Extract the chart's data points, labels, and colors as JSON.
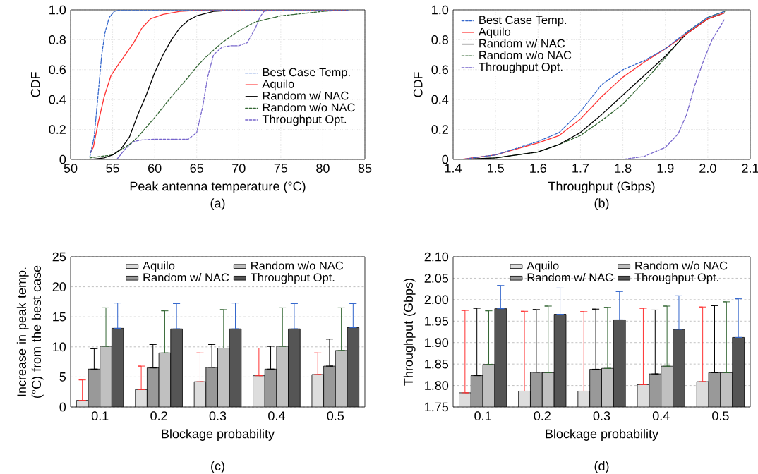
{
  "chart_data": [
    {
      "type": "line",
      "xlabel": "Peak antenna temperature (°C)",
      "ylabel": "CDF",
      "annotations": [
        "(a)"
      ],
      "xlim": [
        50,
        85
      ],
      "ylim": [
        0,
        1
      ],
      "xticks": [
        50,
        55,
        60,
        65,
        70,
        75,
        80,
        85
      ],
      "yticks": [
        0,
        0.2,
        0.4,
        0.6,
        0.8,
        {
          "value": 1.0,
          "label": "1.0"
        }
      ],
      "grid": true,
      "legend": "right",
      "series": [
        {
          "name": "Best Case Temp.",
          "color": "#3366cc",
          "line_style": "dashed",
          "x": [
            52.3,
            52.8,
            53.3,
            53.7,
            54.1,
            54.6,
            55.2,
            56,
            83
          ],
          "values": [
            0.02,
            0.15,
            0.45,
            0.7,
            0.85,
            0.95,
            0.99,
            1.0,
            1.0
          ]
        },
        {
          "name": "Aquilo",
          "color": "#ff3333",
          "line_style": "solid",
          "x": [
            52.3,
            52.7,
            53.3,
            54,
            54.8,
            55.5,
            56.5,
            57.5,
            58.5,
            59.5,
            61,
            63,
            66,
            83
          ],
          "values": [
            0.04,
            0.08,
            0.25,
            0.42,
            0.56,
            0.62,
            0.7,
            0.78,
            0.88,
            0.94,
            0.97,
            0.99,
            1.0,
            1.0
          ]
        },
        {
          "name": "Random w/ NAC",
          "color": "#000000",
          "line_style": "solid",
          "x": [
            52.5,
            54,
            55,
            56,
            57,
            58,
            59,
            60,
            61,
            62,
            63,
            64,
            65,
            67,
            70
          ],
          "values": [
            0,
            0.01,
            0.03,
            0.07,
            0.15,
            0.3,
            0.43,
            0.58,
            0.7,
            0.8,
            0.88,
            0.93,
            0.96,
            0.99,
            1.0
          ]
        },
        {
          "name": "Random w/o NAC",
          "color": "#336633",
          "line_style": "dashed",
          "x": [
            52.3,
            55,
            57,
            58,
            60,
            62,
            64,
            65,
            66,
            68,
            70,
            72,
            75,
            80,
            83
          ],
          "values": [
            0.01,
            0.03,
            0.1,
            0.15,
            0.28,
            0.42,
            0.55,
            0.62,
            0.68,
            0.78,
            0.86,
            0.92,
            0.96,
            0.99,
            1.0
          ]
        },
        {
          "name": "Throughput Opt.",
          "color": "#7766cc",
          "line_style": "dashed",
          "x": [
            55.5,
            56.5,
            57.5,
            58.5,
            60,
            64,
            65,
            65.7,
            66.3,
            67,
            68,
            69,
            70,
            71,
            72,
            72.5,
            73,
            74
          ],
          "values": [
            0,
            0.07,
            0.12,
            0.13,
            0.135,
            0.135,
            0.18,
            0.35,
            0.55,
            0.7,
            0.75,
            0.76,
            0.76,
            0.78,
            0.88,
            0.95,
            0.99,
            1.0
          ]
        }
      ]
    },
    {
      "type": "line",
      "xlabel": "Throughput (Gbps)",
      "ylabel": "CDF",
      "annotations": [
        "(b)"
      ],
      "xlim": [
        1.4,
        2.1
      ],
      "ylim": [
        0,
        1
      ],
      "xticks": [
        1.4,
        1.5,
        1.6,
        1.7,
        1.8,
        1.9,
        {
          "value": 2.0,
          "label": "2.0"
        },
        2.1
      ],
      "yticks": [
        0,
        0.2,
        0.4,
        0.6,
        0.8,
        {
          "value": 1.0,
          "label": "1.0"
        }
      ],
      "grid": true,
      "legend": "top left",
      "series": [
        {
          "name": "Best Case Temp.",
          "color": "#3366cc",
          "line_style": "dashed",
          "x": [
            1.42,
            1.5,
            1.6,
            1.65,
            1.7,
            1.75,
            1.8,
            1.85,
            1.9,
            1.95,
            2.0,
            2.04
          ],
          "values": [
            0,
            0.03,
            0.12,
            0.18,
            0.32,
            0.5,
            0.6,
            0.66,
            0.74,
            0.85,
            0.95,
            0.99
          ]
        },
        {
          "name": "Aquilo",
          "color": "#ff3333",
          "line_style": "solid",
          "x": [
            1.42,
            1.5,
            1.6,
            1.65,
            1.7,
            1.75,
            1.8,
            1.85,
            1.9,
            1.95,
            2.0,
            2.04
          ],
          "values": [
            0,
            0.03,
            0.11,
            0.16,
            0.27,
            0.42,
            0.55,
            0.65,
            0.74,
            0.84,
            0.94,
            0.98
          ]
        },
        {
          "name": "Random w/ NAC",
          "color": "#000000",
          "line_style": "solid",
          "x": [
            1.42,
            1.5,
            1.6,
            1.65,
            1.7,
            1.75,
            1.8,
            1.85,
            1.9,
            1.95,
            2.0,
            2.04
          ],
          "values": [
            0,
            0.01,
            0.05,
            0.1,
            0.18,
            0.3,
            0.43,
            0.56,
            0.69,
            0.84,
            0.94,
            0.98
          ]
        },
        {
          "name": "Random w/o NAC",
          "color": "#336633",
          "line_style": "dashed",
          "x": [
            1.42,
            1.5,
            1.6,
            1.65,
            1.7,
            1.75,
            1.8,
            1.85,
            1.9,
            1.95,
            2.0,
            2.04
          ],
          "values": [
            0,
            0.01,
            0.05,
            0.1,
            0.16,
            0.26,
            0.37,
            0.52,
            0.68,
            0.85,
            0.95,
            0.99
          ]
        },
        {
          "name": "Throughput Opt.",
          "color": "#7766cc",
          "line_style": "dashed",
          "x": [
            1.42,
            1.8,
            1.85,
            1.9,
            1.93,
            1.95,
            1.97,
            1.99,
            2.01,
            2.04
          ],
          "values": [
            0,
            0,
            0.02,
            0.08,
            0.17,
            0.3,
            0.5,
            0.66,
            0.8,
            0.94
          ]
        }
      ]
    },
    {
      "type": "bar",
      "xlabel": "Blockage probability",
      "ylabel": "Increase in peak temp. (°C) from the best case",
      "annotations": [
        "(c)"
      ],
      "categories": [
        "0.1",
        "0.2",
        "0.3",
        "0.4",
        "0.5"
      ],
      "ylim": [
        0,
        25
      ],
      "yticks": [
        0,
        5,
        10,
        15,
        20,
        25
      ],
      "grid": "y",
      "legend": "top",
      "series": [
        {
          "name": "Aquilo",
          "color": "#dddddd",
          "values": [
            1.1,
            2.9,
            4.2,
            5.2,
            5.4
          ],
          "errors": [
            [
              1.1,
              4.5
            ],
            [
              2.9,
              6.8
            ],
            [
              4.2,
              9.0
            ],
            [
              5.2,
              9.8
            ],
            [
              5.4,
              9.0
            ]
          ]
        },
        {
          "name": "Random w/ NAC",
          "color": "#999999",
          "values": [
            6.3,
            6.5,
            6.6,
            6.3,
            6.8
          ],
          "errors": [
            [
              6.3,
              9.7
            ],
            [
              6.5,
              10.4
            ],
            [
              6.6,
              10.4
            ],
            [
              6.3,
              10.1
            ],
            [
              6.8,
              11.3
            ]
          ]
        },
        {
          "name": "Random w/o NAC",
          "color": "#c0c0c0",
          "values": [
            10.1,
            9.0,
            9.8,
            10.1,
            9.4
          ],
          "errors": [
            [
              10.1,
              16.5
            ],
            [
              9.0,
              16.0
            ],
            [
              9.8,
              16.2
            ],
            [
              10.1,
              16.5
            ],
            [
              9.4,
              16.5
            ]
          ]
        },
        {
          "name": "Throughput Opt.",
          "color": "#555555",
          "values": [
            13.1,
            13.0,
            13.0,
            13.0,
            13.2
          ],
          "errors": [
            [
              13.1,
              17.3
            ],
            [
              13.0,
              17.2
            ],
            [
              13.0,
              17.3
            ],
            [
              13.0,
              17.2
            ],
            [
              13.2,
              17.2
            ]
          ]
        }
      ]
    },
    {
      "type": "bar",
      "xlabel": "Blockage probability",
      "ylabel": "Throughput (Gbps)",
      "annotations": [
        "(d)"
      ],
      "categories": [
        "0.1",
        "0.2",
        "0.3",
        "0.4",
        "0.5"
      ],
      "ylim": [
        1.75,
        2.1
      ],
      "yticks": [
        {
          "value": 1.75,
          "label": "1.75"
        },
        {
          "value": 1.8,
          "label": "1.80"
        },
        {
          "value": 1.85,
          "label": "1.85"
        },
        {
          "value": 1.9,
          "label": "1.90"
        },
        {
          "value": 1.95,
          "label": "1.95"
        },
        {
          "value": 2.0,
          "label": "2.00"
        },
        {
          "value": 2.05,
          "label": "2.05"
        },
        {
          "value": 2.1,
          "label": "2.10"
        }
      ],
      "grid": "y",
      "legend": "top",
      "series": [
        {
          "name": "Aquilo",
          "color": "#dddddd",
          "values": [
            1.783,
            1.787,
            1.787,
            1.802,
            1.809
          ],
          "errors": [
            [
              1.783,
              1.975
            ],
            [
              1.787,
              1.973
            ],
            [
              1.787,
              1.972
            ],
            [
              1.802,
              1.98
            ],
            [
              1.809,
              1.983
            ]
          ]
        },
        {
          "name": "Random w/ NAC",
          "color": "#999999",
          "values": [
            1.823,
            1.831,
            1.838,
            1.827,
            1.83
          ],
          "errors": [
            [
              1.823,
              1.98
            ],
            [
              1.831,
              1.977
            ],
            [
              1.838,
              1.978
            ],
            [
              1.827,
              1.976
            ],
            [
              1.83,
              1.986
            ]
          ]
        },
        {
          "name": "Random w/o NAC",
          "color": "#c0c0c0",
          "values": [
            1.849,
            1.83,
            1.84,
            1.845,
            1.83
          ],
          "errors": [
            [
              1.849,
              1.974
            ],
            [
              1.83,
              1.985
            ],
            [
              1.84,
              1.982
            ],
            [
              1.845,
              1.985
            ],
            [
              1.83,
              1.995
            ]
          ]
        },
        {
          "name": "Throughput Opt.",
          "color": "#555555",
          "values": [
            1.979,
            1.966,
            1.953,
            1.931,
            1.912
          ],
          "errors": [
            [
              1.979,
              2.033
            ],
            [
              1.966,
              2.027
            ],
            [
              1.953,
              2.019
            ],
            [
              1.931,
              2.009
            ],
            [
              1.912,
              2.002
            ]
          ]
        }
      ]
    }
  ]
}
